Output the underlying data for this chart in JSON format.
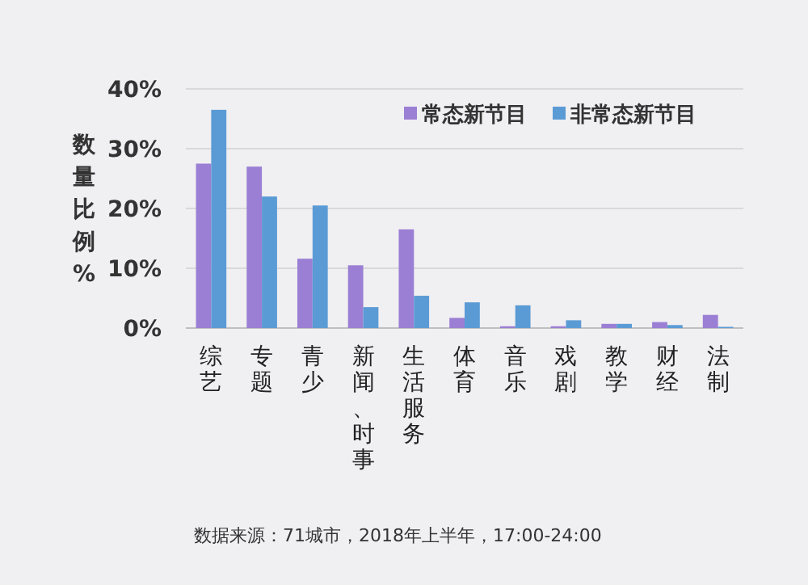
{
  "chart_data": {
    "type": "bar",
    "ylabel": "数量比例%",
    "categories": [
      "综艺",
      "专题",
      "青少",
      "新闻、时事",
      "生活服务",
      "体育",
      "音乐",
      "戏剧",
      "教学",
      "财经",
      "法制"
    ],
    "series": [
      {
        "name": "常态新节目",
        "color": "#9b7fd4",
        "values": [
          27.5,
          27,
          11.6,
          10.5,
          16.5,
          1.7,
          0.3,
          0.3,
          0.7,
          1,
          2.2
        ]
      },
      {
        "name": "非常态新节目",
        "color": "#5b9bd5",
        "values": [
          36.5,
          22,
          20.5,
          3.5,
          5.4,
          4.3,
          3.8,
          1.3,
          0.7,
          0.5,
          0.2
        ]
      }
    ],
    "ylim": [
      0,
      40
    ],
    "yticks": [
      {
        "value": 0,
        "label": "0%"
      },
      {
        "value": 10,
        "label": "10%"
      },
      {
        "value": 20,
        "label": "20%"
      },
      {
        "value": 30,
        "label": "30%"
      },
      {
        "value": 40,
        "label": "40%"
      }
    ],
    "grid": "y",
    "legend": "top right",
    "annotations": [
      "数据来源：71城市，2018年上半年，17:00-24:00"
    ]
  }
}
